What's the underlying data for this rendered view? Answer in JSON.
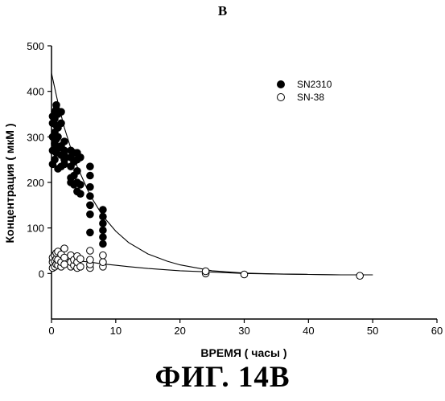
{
  "figure": {
    "panel_letter": "B",
    "caption": "ФИГ. 14B"
  },
  "chart_data": {
    "type": "scatter",
    "xlabel": "ВРЕМЯ ( часы )",
    "ylabel": "Концентрация ( мкМ )",
    "xlim": [
      0,
      60
    ],
    "ylim": [
      -100,
      500
    ],
    "xticks": [
      0,
      10,
      20,
      30,
      40,
      50,
      60
    ],
    "yticks": [
      0,
      100,
      200,
      300,
      400,
      500
    ],
    "legend_position": "top-right",
    "series": [
      {
        "name": "SN2310",
        "marker": "filled-circle",
        "color": "#000000",
        "points": [
          [
            0.17,
            240
          ],
          [
            0.17,
            270
          ],
          [
            0.17,
            300
          ],
          [
            0.17,
            330
          ],
          [
            0.17,
            345
          ],
          [
            0.5,
            250
          ],
          [
            0.5,
            285
          ],
          [
            0.5,
            310
          ],
          [
            0.5,
            340
          ],
          [
            0.5,
            355
          ],
          [
            0.75,
            265
          ],
          [
            0.75,
            295
          ],
          [
            0.75,
            325
          ],
          [
            0.75,
            360
          ],
          [
            0.75,
            370
          ],
          [
            1,
            230
          ],
          [
            1,
            275
          ],
          [
            1,
            300
          ],
          [
            1,
            320
          ],
          [
            1,
            350
          ],
          [
            1.5,
            235
          ],
          [
            1.5,
            260
          ],
          [
            1.5,
            280
          ],
          [
            1.5,
            330
          ],
          [
            1.5,
            355
          ],
          [
            2,
            240
          ],
          [
            2,
            250
          ],
          [
            2,
            260
          ],
          [
            2,
            270
          ],
          [
            2,
            290
          ],
          [
            3,
            200
          ],
          [
            3,
            210
          ],
          [
            3,
            235
          ],
          [
            3,
            255
          ],
          [
            3,
            270
          ],
          [
            3.5,
            195
          ],
          [
            3.5,
            215
          ],
          [
            3.5,
            245
          ],
          [
            3.5,
            265
          ],
          [
            4,
            180
          ],
          [
            4,
            200
          ],
          [
            4,
            225
          ],
          [
            4,
            250
          ],
          [
            4,
            265
          ],
          [
            4.5,
            175
          ],
          [
            4.5,
            195
          ],
          [
            4.5,
            255
          ],
          [
            6,
            90
          ],
          [
            6,
            130
          ],
          [
            6,
            150
          ],
          [
            6,
            170
          ],
          [
            6,
            190
          ],
          [
            6,
            215
          ],
          [
            6,
            235
          ],
          [
            8,
            65
          ],
          [
            8,
            80
          ],
          [
            8,
            95
          ],
          [
            8,
            110
          ],
          [
            8,
            125
          ],
          [
            8,
            140
          ]
        ],
        "fit_curve": [
          [
            0,
            440
          ],
          [
            1,
            375
          ],
          [
            2,
            320
          ],
          [
            3,
            275
          ],
          [
            4,
            235
          ],
          [
            6,
            172
          ],
          [
            8,
            126
          ],
          [
            10,
            93
          ],
          [
            12,
            68
          ],
          [
            15,
            43
          ],
          [
            18,
            27
          ],
          [
            20,
            19
          ],
          [
            25,
            6
          ],
          [
            30,
            1
          ],
          [
            35,
            -1
          ],
          [
            40,
            -2
          ],
          [
            45,
            -3
          ],
          [
            50,
            -3
          ]
        ]
      },
      {
        "name": "SN-38",
        "marker": "open-circle",
        "color": "#000000",
        "points": [
          [
            0.17,
            12
          ],
          [
            0.17,
            25
          ],
          [
            0.17,
            35
          ],
          [
            0.5,
            15
          ],
          [
            0.5,
            28
          ],
          [
            0.5,
            40
          ],
          [
            0.75,
            20
          ],
          [
            0.75,
            32
          ],
          [
            0.75,
            45
          ],
          [
            1,
            18
          ],
          [
            1,
            30
          ],
          [
            1,
            48
          ],
          [
            1.5,
            15
          ],
          [
            1.5,
            25
          ],
          [
            1.5,
            42
          ],
          [
            2,
            20
          ],
          [
            2,
            35
          ],
          [
            2,
            55
          ],
          [
            3,
            15
          ],
          [
            3,
            25
          ],
          [
            3,
            40
          ],
          [
            3.5,
            18
          ],
          [
            3.5,
            30
          ],
          [
            4,
            12
          ],
          [
            4,
            25
          ],
          [
            4,
            38
          ],
          [
            4.5,
            15
          ],
          [
            4.5,
            32
          ],
          [
            6,
            12
          ],
          [
            6,
            20
          ],
          [
            6,
            30
          ],
          [
            6,
            50
          ],
          [
            8,
            15
          ],
          [
            8,
            25
          ],
          [
            8,
            40
          ],
          [
            24,
            0
          ],
          [
            24,
            5
          ],
          [
            30,
            -2
          ],
          [
            48,
            -5
          ]
        ],
        "fit_curve": [
          [
            0,
            36
          ],
          [
            2,
            32
          ],
          [
            4,
            28
          ],
          [
            6,
            25
          ],
          [
            8,
            21
          ],
          [
            10,
            18
          ],
          [
            12,
            15
          ],
          [
            15,
            11
          ],
          [
            18,
            8
          ],
          [
            20,
            6
          ],
          [
            25,
            3
          ],
          [
            30,
            0
          ],
          [
            35,
            -1
          ],
          [
            40,
            -2
          ],
          [
            45,
            -3
          ],
          [
            50,
            -3
          ]
        ]
      }
    ]
  }
}
